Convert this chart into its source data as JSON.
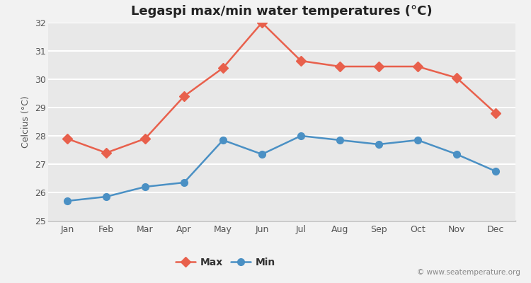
{
  "title": "Legaspi max/min water temperatures (°C)",
  "ylabel": "Celcius (°C)",
  "months": [
    "Jan",
    "Feb",
    "Mar",
    "Apr",
    "May",
    "Jun",
    "Jul",
    "Aug",
    "Sep",
    "Oct",
    "Nov",
    "Dec"
  ],
  "max_temps": [
    27.9,
    27.4,
    27.9,
    29.4,
    30.4,
    32.0,
    30.65,
    30.45,
    30.45,
    30.45,
    30.05,
    28.8
  ],
  "min_temps": [
    25.7,
    25.85,
    26.2,
    26.35,
    27.85,
    27.35,
    28.0,
    27.85,
    27.7,
    27.85,
    27.35,
    26.75
  ],
  "max_color": "#e8604c",
  "min_color": "#4a90c4",
  "ylim": [
    25,
    32
  ],
  "yticks": [
    25,
    26,
    27,
    28,
    29,
    30,
    31,
    32
  ],
  "bg_color": "#f2f2f2",
  "plot_bg_color": "#e8e8e8",
  "grid_color": "#ffffff",
  "watermark": "© www.seatemperature.org",
  "legend_labels": [
    "Max",
    "Min"
  ],
  "title_fontsize": 13,
  "label_fontsize": 9,
  "tick_fontsize": 9,
  "marker_size": 7,
  "line_width": 1.8
}
